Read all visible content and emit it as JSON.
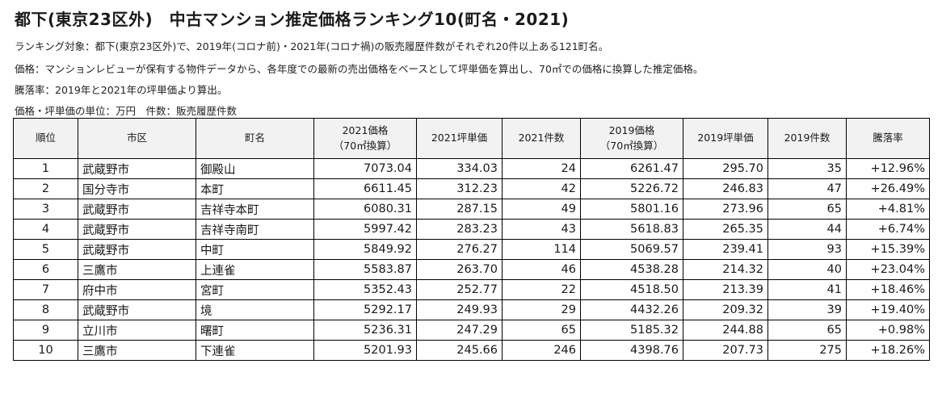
{
  "title": "都下(東京23区外)　中古マンション推定価格ランキング10(町名・2021)",
  "notes": [
    "ランキング対象：都下(東京23区外)で、2019年(コロナ前)・2021年(コロナ禍)の販売履歴件数がそれぞれ20件以上ある121町名。",
    "価格：マンションレビューが保有する物件データから、各年度での最新の売出価格をベースとして坪単価を算出し、70㎡での価格に換算した推定価格。",
    "騰落率：2019年と2021年の坪単価より算出。",
    "価格・坪単価の単位：万円　件数：販売履歴件数"
  ],
  "headers": {
    "rank": "順位",
    "city": "市区",
    "town": "町名",
    "price2021_line1": "2021価格",
    "price2021_line2": "（70㎡換算）",
    "tsubo2021": "2021坪単価",
    "count2021": "2021件数",
    "price2019_line1": "2019価格",
    "price2019_line2": "（70㎡換算）",
    "tsubo2019": "2019坪単価",
    "count2019": "2019件数",
    "change": "騰落率"
  },
  "rows": [
    {
      "rank": "1",
      "city": "武蔵野市",
      "town": "御殿山",
      "price2021": "7073.04",
      "tsubo2021": "334.03",
      "count2021": "24",
      "price2019": "6261.47",
      "tsubo2019": "295.70",
      "count2019": "35",
      "change": "+12.96%"
    },
    {
      "rank": "2",
      "city": "国分寺市",
      "town": "本町",
      "price2021": "6611.45",
      "tsubo2021": "312.23",
      "count2021": "42",
      "price2019": "5226.72",
      "tsubo2019": "246.83",
      "count2019": "47",
      "change": "+26.49%"
    },
    {
      "rank": "3",
      "city": "武蔵野市",
      "town": "吉祥寺本町",
      "price2021": "6080.31",
      "tsubo2021": "287.15",
      "count2021": "49",
      "price2019": "5801.16",
      "tsubo2019": "273.96",
      "count2019": "65",
      "change": "+4.81%"
    },
    {
      "rank": "4",
      "city": "武蔵野市",
      "town": "吉祥寺南町",
      "price2021": "5997.42",
      "tsubo2021": "283.23",
      "count2021": "43",
      "price2019": "5618.83",
      "tsubo2019": "265.35",
      "count2019": "44",
      "change": "+6.74%"
    },
    {
      "rank": "5",
      "city": "武蔵野市",
      "town": "中町",
      "price2021": "5849.92",
      "tsubo2021": "276.27",
      "count2021": "114",
      "price2019": "5069.57",
      "tsubo2019": "239.41",
      "count2019": "93",
      "change": "+15.39%"
    },
    {
      "rank": "6",
      "city": "三鷹市",
      "town": "上連雀",
      "price2021": "5583.87",
      "tsubo2021": "263.70",
      "count2021": "46",
      "price2019": "4538.28",
      "tsubo2019": "214.32",
      "count2019": "40",
      "change": "+23.04%"
    },
    {
      "rank": "7",
      "city": "府中市",
      "town": "宮町",
      "price2021": "5352.43",
      "tsubo2021": "252.77",
      "count2021": "22",
      "price2019": "4518.50",
      "tsubo2019": "213.39",
      "count2019": "41",
      "change": "+18.46%"
    },
    {
      "rank": "8",
      "city": "武蔵野市",
      "town": "境",
      "price2021": "5292.17",
      "tsubo2021": "249.93",
      "count2021": "29",
      "price2019": "4432.26",
      "tsubo2019": "209.32",
      "count2019": "39",
      "change": "+19.40%"
    },
    {
      "rank": "9",
      "city": "立川市",
      "town": "曙町",
      "price2021": "5236.31",
      "tsubo2021": "247.29",
      "count2021": "65",
      "price2019": "5185.32",
      "tsubo2019": "244.88",
      "count2019": "65",
      "change": "+0.98%"
    },
    {
      "rank": "10",
      "city": "三鷹市",
      "town": "下連雀",
      "price2021": "5201.93",
      "tsubo2021": "245.66",
      "count2021": "246",
      "price2019": "4398.76",
      "tsubo2019": "207.73",
      "count2019": "275",
      "change": "+18.26%"
    }
  ]
}
